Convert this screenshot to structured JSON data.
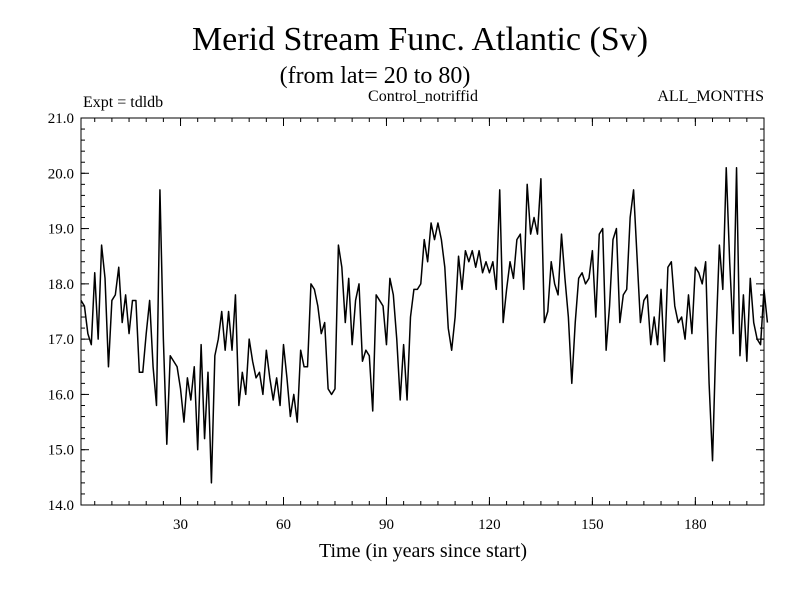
{
  "chart_data": {
    "type": "line",
    "title": "Merid Stream Func. Atlantic (Sv)",
    "subtitle": "(from lat= 20 to 80)",
    "header_left": "Expt = tdldb",
    "header_center": "Control_notriffid",
    "header_right": "ALL_MONTHS",
    "xlabel": "Time (in years since start)",
    "ylabel": "",
    "xlim": [
      1,
      200
    ],
    "ylim": [
      14.0,
      21.0
    ],
    "x_ticks": [
      30,
      60,
      90,
      120,
      150,
      180
    ],
    "y_ticks": [
      14.0,
      15.0,
      16.0,
      17.0,
      18.0,
      19.0,
      20.0,
      21.0
    ],
    "grid": false,
    "series": [
      {
        "name": "Merid Stream Func. Atlantic",
        "color": "#000000",
        "x_start": 1,
        "x_step": 1,
        "values": [
          17.7,
          17.6,
          17.1,
          16.9,
          18.2,
          17.0,
          18.7,
          18.1,
          16.5,
          17.7,
          17.8,
          18.3,
          17.3,
          17.8,
          17.1,
          17.7,
          17.7,
          16.4,
          16.4,
          17.1,
          17.7,
          16.5,
          15.8,
          19.7,
          17.0,
          15.1,
          16.7,
          16.6,
          16.5,
          16.1,
          15.5,
          16.3,
          15.9,
          16.5,
          15.0,
          16.9,
          15.2,
          16.4,
          14.4,
          16.7,
          17.0,
          17.5,
          16.8,
          17.5,
          16.8,
          17.8,
          15.8,
          16.4,
          16.0,
          17.0,
          16.6,
          16.3,
          16.4,
          16.0,
          16.8,
          16.3,
          15.9,
          16.3,
          15.8,
          16.9,
          16.3,
          15.6,
          16.0,
          15.5,
          16.8,
          16.5,
          16.5,
          18.0,
          17.9,
          17.6,
          17.1,
          17.3,
          16.1,
          16.0,
          16.1,
          18.7,
          18.3,
          17.3,
          18.1,
          16.9,
          17.7,
          18.0,
          16.6,
          16.8,
          16.7,
          15.7,
          17.8,
          17.7,
          17.6,
          16.9,
          18.1,
          17.8,
          17.0,
          15.9,
          16.9,
          15.9,
          17.4,
          17.9,
          17.9,
          18.0,
          18.8,
          18.4,
          19.1,
          18.8,
          19.1,
          18.8,
          18.3,
          17.2,
          16.8,
          17.4,
          18.5,
          17.9,
          18.6,
          18.4,
          18.6,
          18.3,
          18.6,
          18.2,
          18.4,
          18.2,
          18.4,
          17.9,
          19.7,
          17.3,
          17.9,
          18.4,
          18.1,
          18.8,
          18.9,
          17.9,
          19.8,
          18.9,
          19.2,
          18.9,
          19.9,
          17.3,
          17.5,
          18.4,
          18.0,
          17.8,
          18.9,
          18.1,
          17.4,
          16.2,
          17.3,
          18.1,
          18.2,
          18.0,
          18.1,
          18.6,
          17.4,
          18.9,
          19.0,
          16.8,
          17.6,
          18.8,
          19.0,
          17.3,
          17.8,
          17.9,
          19.2,
          19.7,
          18.5,
          17.3,
          17.7,
          17.8,
          16.9,
          17.4,
          16.9,
          17.9,
          16.6,
          18.3,
          18.4,
          17.6,
          17.3,
          17.4,
          17.0,
          17.8,
          17.1,
          18.3,
          18.2,
          18.0,
          18.4,
          16.2,
          14.8,
          17.0,
          18.7,
          17.9,
          20.1,
          18.4,
          17.1,
          20.1,
          16.7,
          17.8,
          16.6,
          18.1,
          17.3,
          17.0,
          16.9,
          17.9,
          17.3
        ]
      }
    ]
  }
}
